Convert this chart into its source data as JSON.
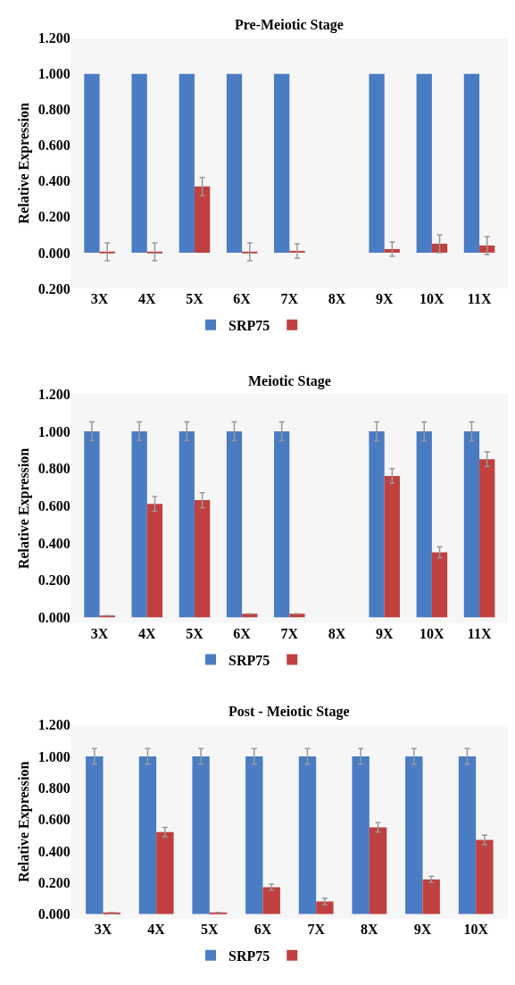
{
  "chart_data": [
    {
      "type": "bar",
      "title": "Pre-Meiotic Stage",
      "ylabel": "Relative Expression",
      "categories": [
        "3X",
        "4X",
        "5X",
        "6X",
        "7X",
        "8X",
        "9X",
        "10X",
        "11X"
      ],
      "series": [
        {
          "name": "SRP75",
          "color": "#4a7cc4",
          "values": [
            1.0,
            1.0,
            1.0,
            1.0,
            1.0,
            null,
            1.0,
            1.0,
            1.0
          ]
        },
        {
          "color": "#c0403f",
          "values": [
            0.005,
            0.005,
            0.37,
            0.005,
            0.01,
            null,
            0.02,
            0.05,
            0.04
          ],
          "errors": [
            0.05,
            0.05,
            0.05,
            0.05,
            0.04,
            null,
            0.04,
            0.05,
            0.05
          ]
        }
      ],
      "ylim": [
        -0.2,
        1.2
      ],
      "yticks": [
        {
          "value": -0.2,
          "label": "0.200"
        },
        {
          "value": 0,
          "label": "0.000"
        },
        {
          "value": 0.2,
          "label": "0.200"
        },
        {
          "value": 0.4,
          "label": "0.400"
        },
        {
          "value": 0.6,
          "label": "0.600"
        },
        {
          "value": 0.8,
          "label": "0.800"
        },
        {
          "value": 1.0,
          "label": "1.000"
        },
        {
          "value": 1.2,
          "label": "1.200"
        }
      ],
      "grid": false,
      "legend": "bottom"
    },
    {
      "type": "bar",
      "title": "Meiotic Stage",
      "ylabel": "Relative Expression",
      "categories": [
        "3X",
        "4X",
        "5X",
        "6X",
        "7X",
        "8X",
        "9X",
        "10X",
        "11X"
      ],
      "series": [
        {
          "name": "SRP75",
          "color": "#4a7cc4",
          "values": [
            1.0,
            1.0,
            1.0,
            1.0,
            1.0,
            null,
            1.0,
            1.0,
            1.0
          ],
          "errors": [
            0.05,
            0.05,
            0.05,
            0.05,
            0.05,
            null,
            0.05,
            0.05,
            0.05
          ]
        },
        {
          "color": "#c0403f",
          "values": [
            0.01,
            0.61,
            0.63,
            0.02,
            0.02,
            null,
            0.76,
            0.35,
            0.85
          ],
          "errors": [
            null,
            0.04,
            0.04,
            null,
            null,
            null,
            0.04,
            0.03,
            0.04
          ]
        }
      ],
      "ylim": [
        -0.03,
        1.2
      ],
      "yticks": [
        {
          "value": 0,
          "label": "0.000"
        },
        {
          "value": 0.2,
          "label": "0.200"
        },
        {
          "value": 0.4,
          "label": "0.400"
        },
        {
          "value": 0.6,
          "label": "0.600"
        },
        {
          "value": 0.8,
          "label": "0.800"
        },
        {
          "value": 1.0,
          "label": "1.000"
        },
        {
          "value": 1.2,
          "label": "1.200"
        }
      ],
      "grid": false,
      "legend": "bottom"
    },
    {
      "type": "bar",
      "title": "Post - Meiotic Stage",
      "ylabel": "Relative Expression",
      "categories": [
        "3X",
        "4X",
        "5X",
        "6X",
        "7X",
        "8X",
        "9X",
        "10X"
      ],
      "series": [
        {
          "name": "SRP75",
          "color": "#4a7cc4",
          "values": [
            1.0,
            1.0,
            1.0,
            1.0,
            1.0,
            1.0,
            1.0,
            1.0
          ],
          "errors": [
            0.05,
            0.05,
            0.05,
            0.05,
            0.05,
            0.05,
            0.05,
            0.05
          ]
        },
        {
          "color": "#c0403f",
          "values": [
            0.01,
            0.52,
            0.01,
            0.17,
            0.08,
            0.55,
            0.22,
            0.47
          ],
          "errors": [
            null,
            0.03,
            null,
            0.02,
            0.02,
            0.03,
            0.02,
            0.03
          ]
        }
      ],
      "ylim": [
        -0.03,
        1.2
      ],
      "yticks": [
        {
          "value": 0,
          "label": "0.000"
        },
        {
          "value": 0.2,
          "label": "0.200"
        },
        {
          "value": 0.4,
          "label": "0.400"
        },
        {
          "value": 0.6,
          "label": "0.600"
        },
        {
          "value": 0.8,
          "label": "0.800"
        },
        {
          "value": 1.0,
          "label": "1.000"
        },
        {
          "value": 1.2,
          "label": "1.200"
        }
      ],
      "grid": false,
      "legend": "bottom"
    }
  ]
}
